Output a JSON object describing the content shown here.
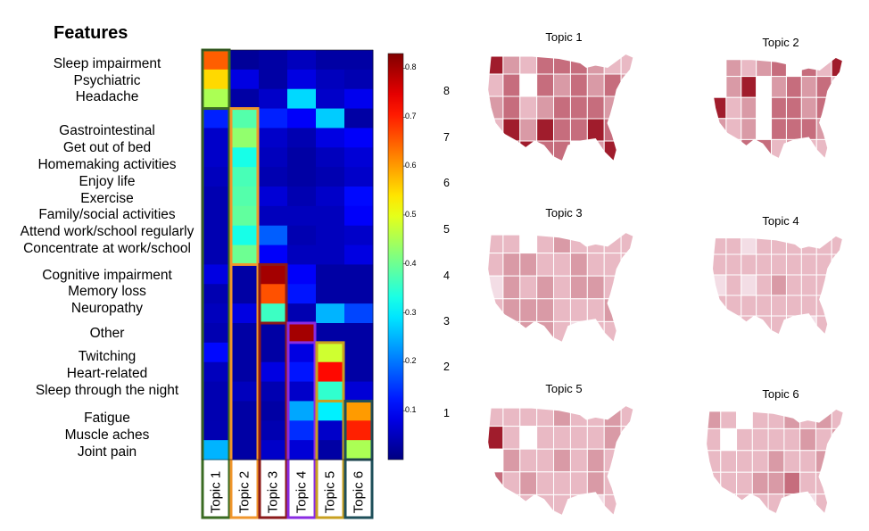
{
  "chart_data": [
    {
      "type": "heatmap",
      "title": "Features",
      "rows": [
        "Sleep impairment",
        "Psychiatric",
        "Headache",
        "Gastrointestinal",
        "Get out of bed",
        "Homemaking activities",
        "Enjoy life",
        "Exercise",
        "Family/social activities",
        "Attend work/school regularly",
        "Concentrate at work/school",
        "Cognitive impairment",
        "Memory loss",
        "Neuropathy",
        "Other",
        "Twitching",
        "Heart-related",
        "Sleep through the night",
        "Fatigue",
        "Muscle aches",
        "Joint pain"
      ],
      "columns": [
        "Topic 1",
        "Topic 2",
        "Topic 3",
        "Topic 4",
        "Topic 5",
        "Topic 6"
      ],
      "values": [
        [
          0.65,
          0.02,
          0.03,
          0.05,
          0.03,
          0.03
        ],
        [
          0.55,
          0.08,
          0.03,
          0.08,
          0.05,
          0.04
        ],
        [
          0.45,
          0.03,
          0.06,
          0.28,
          0.06,
          0.09
        ],
        [
          0.13,
          0.38,
          0.13,
          0.1,
          0.27,
          0.03
        ],
        [
          0.06,
          0.43,
          0.06,
          0.04,
          0.08,
          0.1
        ],
        [
          0.06,
          0.33,
          0.05,
          0.03,
          0.05,
          0.07
        ],
        [
          0.05,
          0.37,
          0.04,
          0.03,
          0.04,
          0.06
        ],
        [
          0.04,
          0.38,
          0.07,
          0.04,
          0.06,
          0.11
        ],
        [
          0.04,
          0.39,
          0.05,
          0.05,
          0.05,
          0.1
        ],
        [
          0.04,
          0.33,
          0.18,
          0.04,
          0.05,
          0.06
        ],
        [
          0.04,
          0.4,
          0.1,
          0.05,
          0.05,
          0.08
        ],
        [
          0.08,
          0.03,
          0.8,
          0.1,
          0.03,
          0.03
        ],
        [
          0.04,
          0.03,
          0.66,
          0.12,
          0.03,
          0.03
        ],
        [
          0.05,
          0.08,
          0.36,
          0.04,
          0.25,
          0.16
        ],
        [
          0.04,
          0.03,
          0.03,
          0.8,
          0.03,
          0.03
        ],
        [
          0.11,
          0.03,
          0.03,
          0.08,
          0.48,
          0.03
        ],
        [
          0.05,
          0.03,
          0.08,
          0.12,
          0.72,
          0.03
        ],
        [
          0.04,
          0.05,
          0.04,
          0.06,
          0.35,
          0.07
        ],
        [
          0.04,
          0.03,
          0.03,
          0.24,
          0.3,
          0.6
        ],
        [
          0.04,
          0.03,
          0.04,
          0.14,
          0.06,
          0.7
        ],
        [
          0.25,
          0.03,
          0.06,
          0.07,
          0.03,
          0.45
        ]
      ],
      "colorbar": {
        "min": 0.0,
        "max": 0.83,
        "ticks": [
          "0.1",
          "0.2",
          "0.3",
          "0.4",
          "0.5",
          "0.6",
          "0.7",
          "0.8"
        ]
      },
      "extra_axis_ticks": [
        "1",
        "2",
        "3",
        "4",
        "5",
        "6",
        "7",
        "8"
      ],
      "colormap": "jet",
      "topic_box_colors": [
        "#3a6b22",
        "#f0962c",
        "#8b1a1a",
        "#8a2be2",
        "#c8a020",
        "#1e4f5a"
      ]
    },
    {
      "type": "map",
      "panels": [
        {
          "title": "Topic 1"
        },
        {
          "title": "Topic 2"
        },
        {
          "title": "Topic 3"
        },
        {
          "title": "Topic 4"
        },
        {
          "title": "Topic 5"
        },
        {
          "title": "Topic 6"
        }
      ],
      "colors": [
        "#f3dde5",
        "#e9b9c4",
        "#d99aa6",
        "#c66d7d",
        "#a01c2c",
        "#ffffff"
      ]
    }
  ]
}
